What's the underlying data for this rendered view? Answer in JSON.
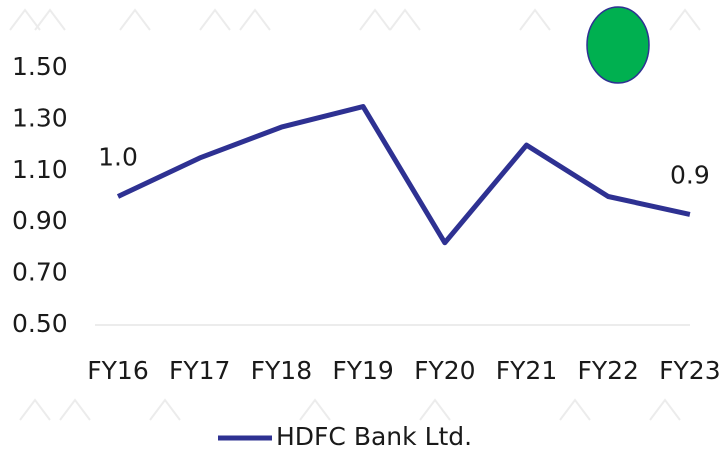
{
  "chart_data": {
    "type": "line",
    "categories": [
      "FY16",
      "FY17",
      "FY18",
      "FY19",
      "FY20",
      "FY21",
      "FY22",
      "FY23"
    ],
    "series": [
      {
        "name": "HDFC Bank Ltd.",
        "color": "#2e3192",
        "values": [
          1.0,
          1.15,
          1.27,
          1.35,
          0.82,
          1.2,
          1.0,
          0.93
        ],
        "value_labels": [
          "1.0",
          null,
          null,
          null,
          null,
          null,
          null,
          "0.9"
        ]
      }
    ],
    "ylim": [
      0.5,
      1.5
    ],
    "yticks": [
      {
        "value": 0.5,
        "label": "0.50"
      },
      {
        "value": 0.7,
        "label": "0.70"
      },
      {
        "value": 0.9,
        "label": "0.90"
      },
      {
        "value": 1.1,
        "label": "1.10"
      },
      {
        "value": 1.3,
        "label": "1.30"
      },
      {
        "value": 1.5,
        "label": "1.50"
      }
    ],
    "grid": false,
    "legend": "bottom"
  }
}
